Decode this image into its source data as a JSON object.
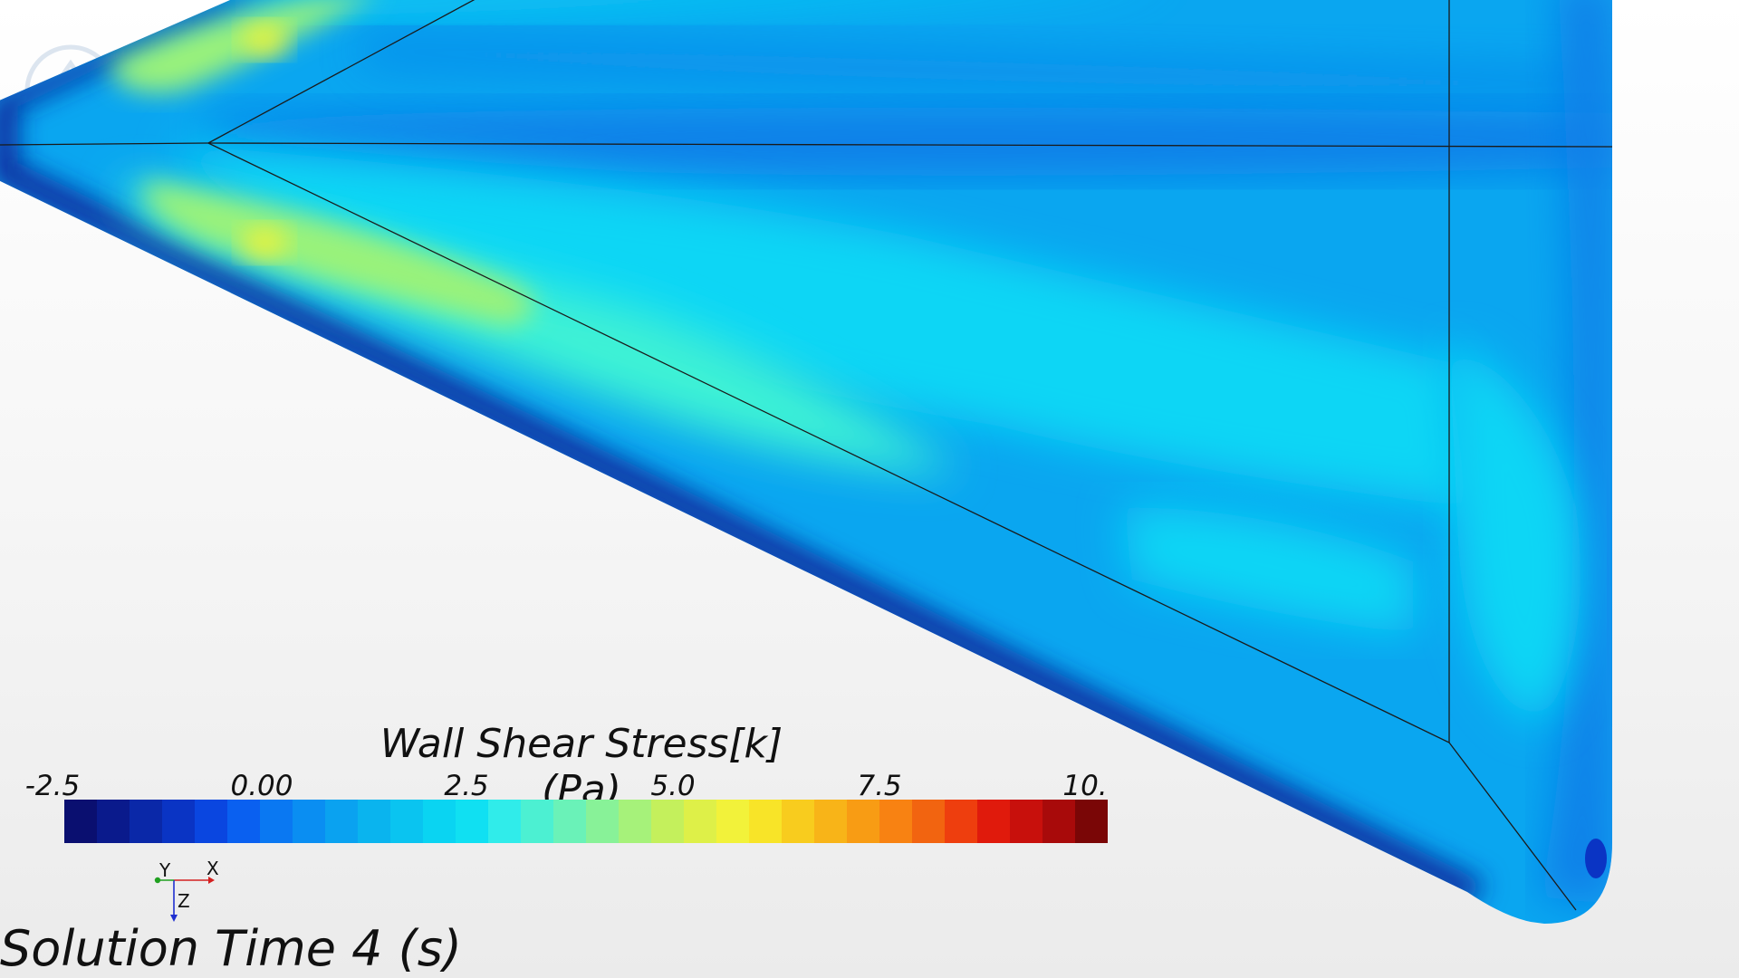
{
  "scene": {
    "colors": {
      "surface_base": "#0aa6f0",
      "surface_dark_edge": "#0a2a9e",
      "surface_mid_blue": "#087fe8",
      "surface_cyan": "#0ad6f5",
      "surface_teal": "#3df2d6",
      "surface_green": "#9af27a",
      "surface_yellow": "#e9f23d",
      "edge_line": "#1a1a1a"
    }
  },
  "legend": {
    "title": "Wall Shear Stress[k] (Pa)",
    "ticks": [
      "-2.5",
      "0.00",
      "2.5",
      "5.0",
      "7.5",
      "10."
    ],
    "colormap": [
      "#0a0f70",
      "#0a1a8c",
      "#0a28a8",
      "#0a34c4",
      "#0a46e0",
      "#0a60f0",
      "#0a78f2",
      "#0a8ef2",
      "#0aa2f0",
      "#0ab4ee",
      "#0ac4f0",
      "#0ad4f2",
      "#10e0f2",
      "#30ecea",
      "#4cf0d2",
      "#6af2b8",
      "#88f298",
      "#a6f27a",
      "#c4f05c",
      "#def048",
      "#f2f23a",
      "#f8e428",
      "#f8cc1e",
      "#f8b418",
      "#f89c14",
      "#f88212",
      "#f26410",
      "#ee3e0e",
      "#e01a0c",
      "#c8100c",
      "#a80a0a",
      "#7a0606"
    ]
  },
  "annotation": {
    "solution_time": "Solution Time 4 (s)"
  },
  "axes": {
    "x_label": "X",
    "y_label": "Y",
    "z_label": "Z",
    "x_color": "#d42020",
    "y_color": "#20a020",
    "z_color": "#2030d0"
  }
}
